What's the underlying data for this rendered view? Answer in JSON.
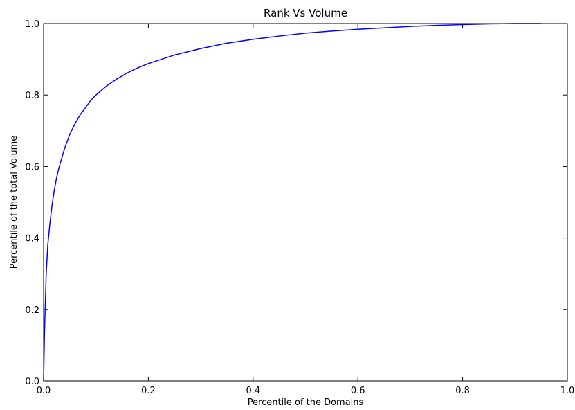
{
  "chart_data": {
    "type": "line",
    "title": "Rank Vs Volume",
    "xlabel": "Percentile of the Domains",
    "ylabel": "Percentile of the total Volume",
    "xlim": [
      0.0,
      1.0
    ],
    "ylim": [
      0.0,
      1.0
    ],
    "xticks": [
      "0.0",
      "0.2",
      "0.4",
      "0.6",
      "0.8",
      "1.0"
    ],
    "yticks": [
      "0.0",
      "0.2",
      "0.4",
      "0.6",
      "0.8",
      "1.0"
    ],
    "grid": false,
    "legend": "none",
    "series": [
      {
        "color": "#0000ff",
        "x": [
          0.0,
          0.002,
          0.005,
          0.008,
          0.012,
          0.016,
          0.02,
          0.025,
          0.03,
          0.04,
          0.05,
          0.06,
          0.07,
          0.08,
          0.09,
          0.1,
          0.12,
          0.14,
          0.16,
          0.18,
          0.2,
          0.25,
          0.3,
          0.35,
          0.4,
          0.45,
          0.5,
          0.55,
          0.6,
          0.65,
          0.7,
          0.75,
          0.8,
          0.85,
          0.9,
          0.95
        ],
        "y": [
          0.0,
          0.15,
          0.3,
          0.38,
          0.44,
          0.49,
          0.53,
          0.57,
          0.6,
          0.65,
          0.69,
          0.72,
          0.745,
          0.765,
          0.785,
          0.8,
          0.825,
          0.845,
          0.862,
          0.876,
          0.888,
          0.912,
          0.93,
          0.945,
          0.956,
          0.965,
          0.973,
          0.979,
          0.984,
          0.988,
          0.992,
          0.995,
          0.997,
          0.999,
          1.0,
          1.0
        ]
      }
    ]
  }
}
